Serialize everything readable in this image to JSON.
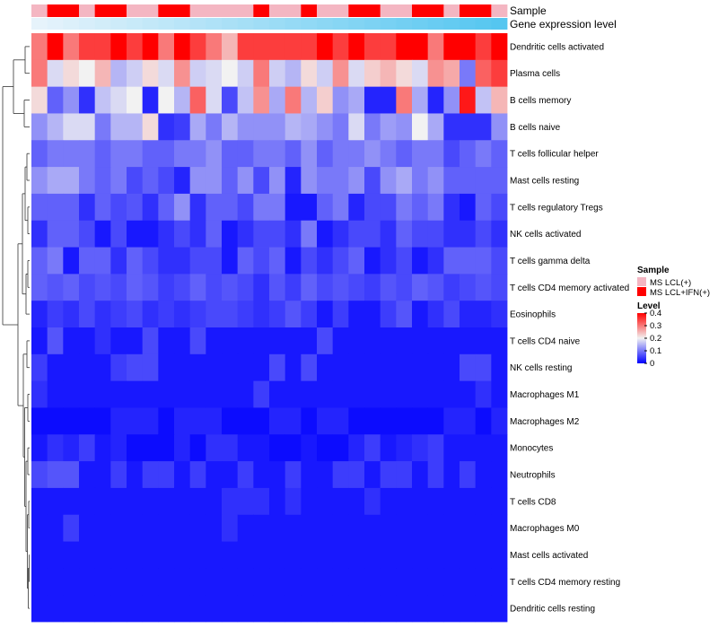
{
  "chart_data": {
    "type": "heatmap",
    "annotation_tracks": [
      "Sample",
      "Gene expression level"
    ],
    "columns": 30,
    "sample_groups": [
      "MS LCL(+)",
      "MS LCL+IFN(+)",
      "MS LCL+IFN(+)",
      "MS LCL(+)",
      "MS LCL+IFN(+)",
      "MS LCL+IFN(+)",
      "MS LCL(+)",
      "MS LCL(+)",
      "MS LCL+IFN(+)",
      "MS LCL+IFN(+)",
      "MS LCL(+)",
      "MS LCL(+)",
      "MS LCL(+)",
      "MS LCL(+)",
      "MS LCL+IFN(+)",
      "MS LCL(+)",
      "MS LCL(+)",
      "MS LCL+IFN(+)",
      "MS LCL(+)",
      "MS LCL(+)",
      "MS LCL+IFN(+)",
      "MS LCL+IFN(+)",
      "MS LCL(+)",
      "MS LCL(+)",
      "MS LCL+IFN(+)",
      "MS LCL+IFN(+)",
      "MS LCL(+)",
      "MS LCL+IFN(+)",
      "MS LCL+IFN(+)",
      "MS LCL(+)"
    ],
    "rows": [
      {
        "name": "Dendritic cells activated",
        "values": [
          0.3,
          0.4,
          0.3,
          0.35,
          0.35,
          0.4,
          0.35,
          0.4,
          0.3,
          0.4,
          0.35,
          0.3,
          0.25,
          0.35,
          0.35,
          0.35,
          0.35,
          0.35,
          0.4,
          0.35,
          0.4,
          0.35,
          0.35,
          0.4,
          0.4,
          0.3,
          0.4,
          0.4,
          0.35,
          0.4
        ]
      },
      {
        "name": "Plasma cells",
        "values": [
          0.3,
          0.18,
          0.22,
          0.2,
          0.25,
          0.15,
          0.17,
          0.22,
          0.18,
          0.28,
          0.17,
          0.18,
          0.2,
          0.17,
          0.3,
          0.17,
          0.15,
          0.22,
          0.17,
          0.28,
          0.18,
          0.23,
          0.25,
          0.22,
          0.18,
          0.28,
          0.26,
          0.1,
          0.32,
          0.35
        ]
      },
      {
        "name": "B cells memory",
        "values": [
          0.22,
          0.08,
          0.12,
          0.04,
          0.16,
          0.18,
          0.2,
          0.03,
          0.2,
          0.15,
          0.32,
          0.18,
          0.06,
          0.16,
          0.28,
          0.14,
          0.3,
          0.15,
          0.23,
          0.12,
          0.14,
          0.03,
          0.03,
          0.3,
          0.14,
          0.03,
          0.12,
          0.38,
          0.16,
          0.25
        ]
      },
      {
        "name": "B cells naive",
        "values": [
          0.12,
          0.15,
          0.18,
          0.18,
          0.1,
          0.15,
          0.15,
          0.22,
          0.04,
          0.05,
          0.14,
          0.1,
          0.15,
          0.12,
          0.12,
          0.12,
          0.15,
          0.14,
          0.12,
          0.1,
          0.18,
          0.1,
          0.13,
          0.12,
          0.2,
          0.14,
          0.04,
          0.04,
          0.04,
          0.12
        ]
      },
      {
        "name": "T cells follicular helper",
        "values": [
          0.08,
          0.1,
          0.1,
          0.1,
          0.08,
          0.1,
          0.1,
          0.08,
          0.08,
          0.1,
          0.1,
          0.12,
          0.08,
          0.08,
          0.1,
          0.1,
          0.08,
          0.12,
          0.08,
          0.1,
          0.1,
          0.12,
          0.1,
          0.08,
          0.1,
          0.1,
          0.06,
          0.08,
          0.1,
          0.08
        ]
      },
      {
        "name": "Mast cells resting",
        "values": [
          0.12,
          0.14,
          0.14,
          0.1,
          0.08,
          0.1,
          0.06,
          0.08,
          0.06,
          0.03,
          0.12,
          0.12,
          0.08,
          0.12,
          0.06,
          0.12,
          0.03,
          0.12,
          0.1,
          0.1,
          0.12,
          0.06,
          0.12,
          0.14,
          0.1,
          0.12,
          0.08,
          0.08,
          0.08,
          0.08
        ]
      },
      {
        "name": "T cells regulatory  Tregs",
        "values": [
          0.08,
          0.08,
          0.08,
          0.04,
          0.08,
          0.06,
          0.07,
          0.04,
          0.08,
          0.12,
          0.04,
          0.08,
          0.08,
          0.06,
          0.1,
          0.1,
          0.02,
          0.02,
          0.08,
          0.1,
          0.03,
          0.06,
          0.06,
          0.1,
          0.08,
          0.1,
          0.04,
          0.02,
          0.08,
          0.06
        ]
      },
      {
        "name": "NK cells activated",
        "values": [
          0.04,
          0.08,
          0.08,
          0.06,
          0.02,
          0.06,
          0.02,
          0.02,
          0.04,
          0.06,
          0.04,
          0.08,
          0.02,
          0.04,
          0.06,
          0.06,
          0.04,
          0.1,
          0.02,
          0.04,
          0.06,
          0.06,
          0.04,
          0.08,
          0.06,
          0.06,
          0.04,
          0.04,
          0.06,
          0.04
        ]
      },
      {
        "name": "T cells gamma delta",
        "values": [
          0.08,
          0.1,
          0.02,
          0.08,
          0.08,
          0.04,
          0.08,
          0.06,
          0.04,
          0.04,
          0.06,
          0.06,
          0.02,
          0.08,
          0.06,
          0.08,
          0.02,
          0.06,
          0.04,
          0.06,
          0.08,
          0.02,
          0.04,
          0.06,
          0.02,
          0.04,
          0.08,
          0.08,
          0.08,
          0.06
        ]
      },
      {
        "name": "T cells CD4 memory activated",
        "values": [
          0.08,
          0.07,
          0.08,
          0.06,
          0.07,
          0.06,
          0.08,
          0.07,
          0.05,
          0.06,
          0.08,
          0.06,
          0.07,
          0.06,
          0.04,
          0.07,
          0.05,
          0.08,
          0.06,
          0.07,
          0.06,
          0.05,
          0.07,
          0.06,
          0.08,
          0.07,
          0.05,
          0.06,
          0.07,
          0.06
        ]
      },
      {
        "name": "Eosinophils",
        "values": [
          0.03,
          0.05,
          0.04,
          0.06,
          0.04,
          0.05,
          0.06,
          0.04,
          0.05,
          0.04,
          0.05,
          0.06,
          0.06,
          0.05,
          0.04,
          0.05,
          0.07,
          0.05,
          0.02,
          0.05,
          0.02,
          0.02,
          0.05,
          0.07,
          0.02,
          0.04,
          0.06,
          0.03,
          0.03,
          0.04
        ]
      },
      {
        "name": "T cells CD4 naive",
        "values": [
          0.02,
          0.07,
          0.02,
          0.02,
          0.04,
          0.02,
          0.02,
          0.06,
          0.02,
          0.02,
          0.06,
          0.02,
          0.02,
          0.02,
          0.02,
          0.02,
          0.02,
          0.02,
          0.06,
          0.02,
          0.02,
          0.02,
          0.02,
          0.02,
          0.02,
          0.02,
          0.02,
          0.02,
          0.02,
          0.02
        ]
      },
      {
        "name": "NK cells resting",
        "values": [
          0.05,
          0.02,
          0.02,
          0.02,
          0.02,
          0.05,
          0.06,
          0.06,
          0.02,
          0.02,
          0.02,
          0.02,
          0.02,
          0.02,
          0.02,
          0.06,
          0.02,
          0.06,
          0.02,
          0.02,
          0.02,
          0.02,
          0.02,
          0.02,
          0.02,
          0.02,
          0.02,
          0.06,
          0.06,
          0.02
        ]
      },
      {
        "name": "Macrophages M1",
        "values": [
          0.04,
          0.02,
          0.02,
          0.02,
          0.02,
          0.02,
          0.02,
          0.02,
          0.02,
          0.02,
          0.02,
          0.02,
          0.02,
          0.02,
          0.05,
          0.02,
          0.02,
          0.02,
          0.02,
          0.02,
          0.02,
          0.02,
          0.02,
          0.02,
          0.02,
          0.02,
          0.02,
          0.02,
          0.04,
          0.02
        ]
      },
      {
        "name": "Macrophages M2",
        "values": [
          0.01,
          0.01,
          0.01,
          0.01,
          0.01,
          0.03,
          0.03,
          0.03,
          0.01,
          0.03,
          0.03,
          0.03,
          0.01,
          0.01,
          0.01,
          0.03,
          0.03,
          0.01,
          0.03,
          0.03,
          0.01,
          0.01,
          0.01,
          0.01,
          0.01,
          0.01,
          0.03,
          0.03,
          0.01,
          0.03
        ]
      },
      {
        "name": "Monocytes",
        "values": [
          0.02,
          0.04,
          0.03,
          0.05,
          0.02,
          0.03,
          0.01,
          0.01,
          0.01,
          0.03,
          0.01,
          0.04,
          0.04,
          0.02,
          0.02,
          0.01,
          0.01,
          0.02,
          0.01,
          0.01,
          0.03,
          0.05,
          0.02,
          0.03,
          0.04,
          0.05,
          0.02,
          0.02,
          0.02,
          0.02
        ]
      },
      {
        "name": "Neutrophils",
        "values": [
          0.06,
          0.07,
          0.07,
          0.02,
          0.02,
          0.05,
          0.02,
          0.05,
          0.05,
          0.02,
          0.05,
          0.02,
          0.02,
          0.05,
          0.02,
          0.02,
          0.05,
          0.02,
          0.02,
          0.05,
          0.05,
          0.02,
          0.05,
          0.05,
          0.02,
          0.05,
          0.02,
          0.05,
          0.02,
          0.02
        ]
      },
      {
        "name": "T cells CD8",
        "values": [
          0.02,
          0.02,
          0.02,
          0.02,
          0.02,
          0.02,
          0.02,
          0.02,
          0.02,
          0.02,
          0.02,
          0.02,
          0.04,
          0.04,
          0.04,
          0.02,
          0.04,
          0.02,
          0.02,
          0.02,
          0.02,
          0.04,
          0.02,
          0.02,
          0.02,
          0.02,
          0.02,
          0.02,
          0.02,
          0.02
        ]
      },
      {
        "name": "Macrophages M0",
        "values": [
          0.02,
          0.02,
          0.05,
          0.02,
          0.02,
          0.02,
          0.02,
          0.02,
          0.02,
          0.02,
          0.02,
          0.02,
          0.04,
          0.02,
          0.02,
          0.02,
          0.02,
          0.02,
          0.02,
          0.02,
          0.02,
          0.02,
          0.02,
          0.02,
          0.02,
          0.02,
          0.02,
          0.02,
          0.02,
          0.02
        ]
      },
      {
        "name": "Mast cells activated",
        "values": [
          0.02,
          0.02,
          0.02,
          0.02,
          0.02,
          0.02,
          0.02,
          0.02,
          0.02,
          0.02,
          0.02,
          0.02,
          0.02,
          0.02,
          0.02,
          0.02,
          0.02,
          0.02,
          0.02,
          0.02,
          0.02,
          0.02,
          0.02,
          0.02,
          0.02,
          0.02,
          0.02,
          0.02,
          0.02,
          0.02
        ]
      },
      {
        "name": "T cells CD4 memory resting",
        "values": [
          0.02,
          0.02,
          0.02,
          0.02,
          0.02,
          0.02,
          0.02,
          0.02,
          0.02,
          0.02,
          0.02,
          0.02,
          0.02,
          0.02,
          0.02,
          0.02,
          0.02,
          0.02,
          0.02,
          0.02,
          0.02,
          0.02,
          0.02,
          0.02,
          0.02,
          0.02,
          0.02,
          0.02,
          0.02,
          0.02
        ]
      },
      {
        "name": "Dendritic cells resting",
        "values": [
          0.02,
          0.02,
          0.02,
          0.02,
          0.02,
          0.02,
          0.02,
          0.02,
          0.02,
          0.02,
          0.02,
          0.02,
          0.02,
          0.02,
          0.02,
          0.02,
          0.02,
          0.02,
          0.02,
          0.02,
          0.02,
          0.02,
          0.02,
          0.02,
          0.02,
          0.02,
          0.02,
          0.02,
          0.02,
          0.02
        ]
      }
    ],
    "legend": {
      "sample": {
        "title": "Sample",
        "entries": [
          {
            "label": "MS LCL(+)",
            "color": "#f4b6c2"
          },
          {
            "label": "MS LCL+IFN(+)",
            "color": "#ff0000"
          }
        ]
      },
      "level": {
        "title": "Level",
        "ticks": [
          0.4,
          0.3,
          0.2,
          0.1,
          0
        ],
        "tick_labels": [
          "0.4",
          "0.3",
          "0.2",
          "0.1",
          "0"
        ],
        "range": [
          0,
          0.4
        ]
      },
      "gene_expression_colors": [
        "#e6f3fb",
        "#55c6f0"
      ]
    },
    "colors": {
      "low": "#0000ff",
      "mid": "#f2f2f2",
      "high": "#ff0000",
      "sample_ctrl": "#f4b6c2",
      "sample_ifn": "#ff0000"
    }
  }
}
